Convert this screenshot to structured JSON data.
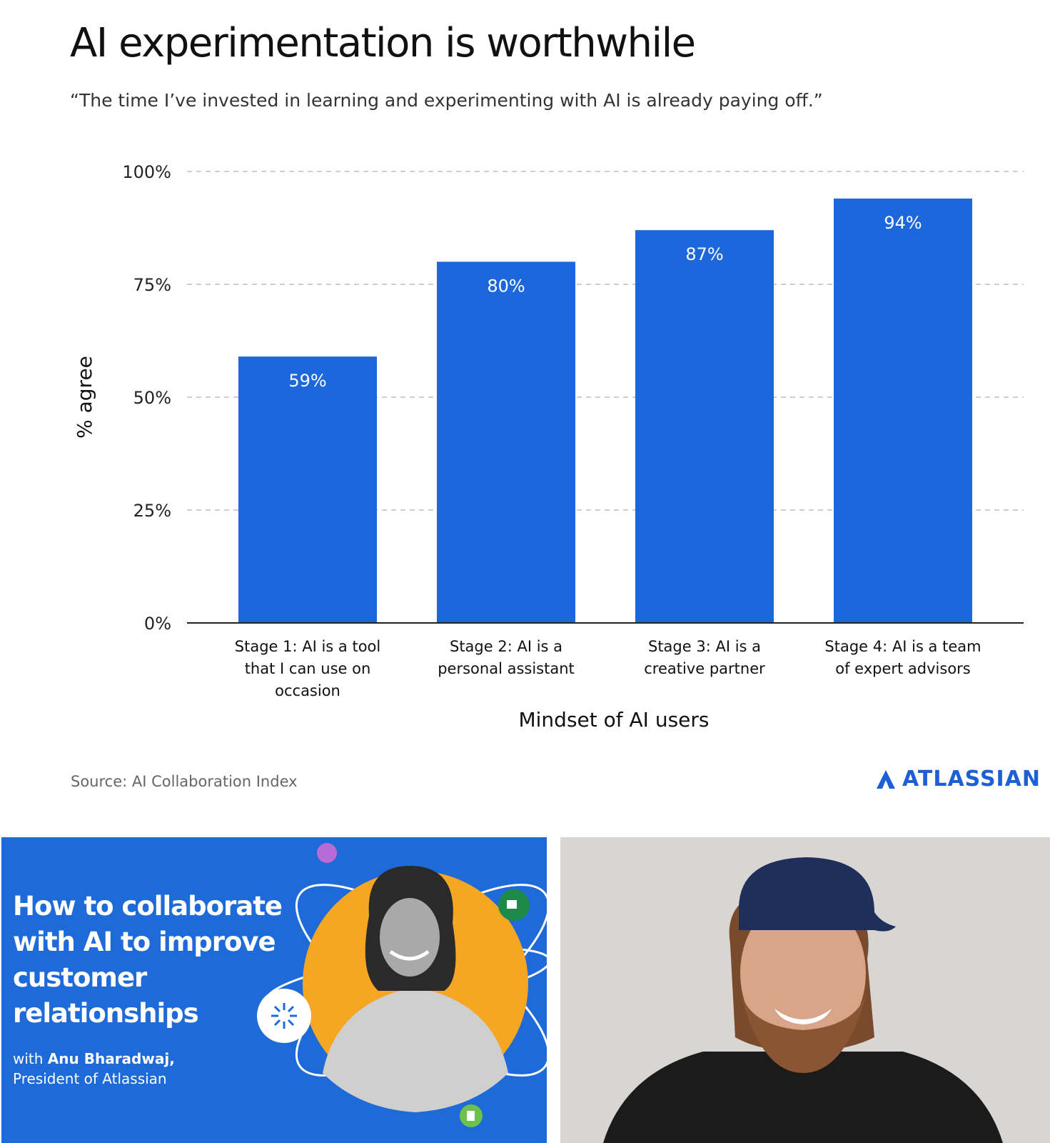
{
  "chart_data": {
    "type": "bar",
    "title": "AI experimentation is worthwhile",
    "subtitle": "“The time I’ve invested in learning and experimenting with AI is already paying off.”",
    "categories": [
      [
        "Stage 1: AI is a tool",
        "that I can use on",
        "occasion"
      ],
      [
        "Stage 2: AI is a",
        "personal assistant"
      ],
      [
        "Stage 3: AI is a",
        "creative partner"
      ],
      [
        "Stage 4: AI is a team",
        "of expert advisors"
      ]
    ],
    "values": [
      59,
      80,
      87,
      94
    ],
    "data_labels": [
      "59%",
      "80%",
      "87%",
      "94%"
    ],
    "xlabel": "Mindset of AI users",
    "ylabel": "% agree",
    "ylim": [
      0,
      100
    ],
    "yticks": [
      0,
      25,
      50,
      75,
      100
    ],
    "ytick_labels": [
      "0%",
      "25%",
      "50%",
      "75%",
      "100%"
    ],
    "grid": true,
    "bar_color": "#1c67db"
  },
  "footer": {
    "source": "Source: AI Collaboration Index",
    "brand": "ATLASSIAN",
    "brand_color": "#1c5fd6"
  },
  "promo": {
    "title": "How to collaborate with AI to improve customer relationships",
    "byline_prefix": "with ",
    "byline_name": "Anu Bharadwaj,",
    "byline_role": "President of Atlassian",
    "background_color": "#1d6ad8",
    "accent_color": "#f5a623"
  }
}
